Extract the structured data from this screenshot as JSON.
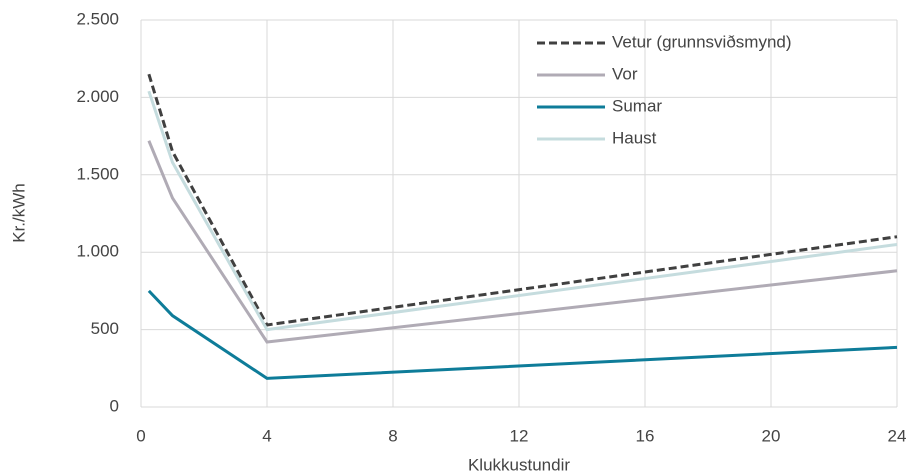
{
  "chart_data": {
    "type": "line",
    "x_label": "Klukkustundir",
    "y_label": "Kr./kWh",
    "x": [
      0.25,
      1,
      4,
      24
    ],
    "series": [
      {
        "name": "Vetur (grunnsviðsmynd)",
        "color": "#404040",
        "dashed": true,
        "values": [
          2150,
          1650,
          530,
          1100
        ]
      },
      {
        "name": "Vor",
        "color": "#b0abb5",
        "values": [
          1720,
          1350,
          420,
          880
        ]
      },
      {
        "name": "Sumar",
        "color": "#0e7c99",
        "values": [
          750,
          590,
          185,
          385
        ]
      },
      {
        "name": "Haust",
        "color": "#c5dcde",
        "values": [
          2040,
          1580,
          500,
          1050
        ]
      }
    ],
    "xlim": [
      0,
      24
    ],
    "xticks": [
      0,
      4,
      8,
      12,
      16,
      20,
      24
    ],
    "ylim": [
      0,
      2500
    ],
    "yticks": [
      0,
      500,
      {
        "value": 1000,
        "label": "1.000"
      },
      {
        "value": 1500,
        "label": "1.500"
      },
      {
        "value": 2000,
        "label": "2.000"
      },
      {
        "value": 2500,
        "label": "2.500"
      }
    ],
    "grid": true,
    "legend": "top-right"
  }
}
